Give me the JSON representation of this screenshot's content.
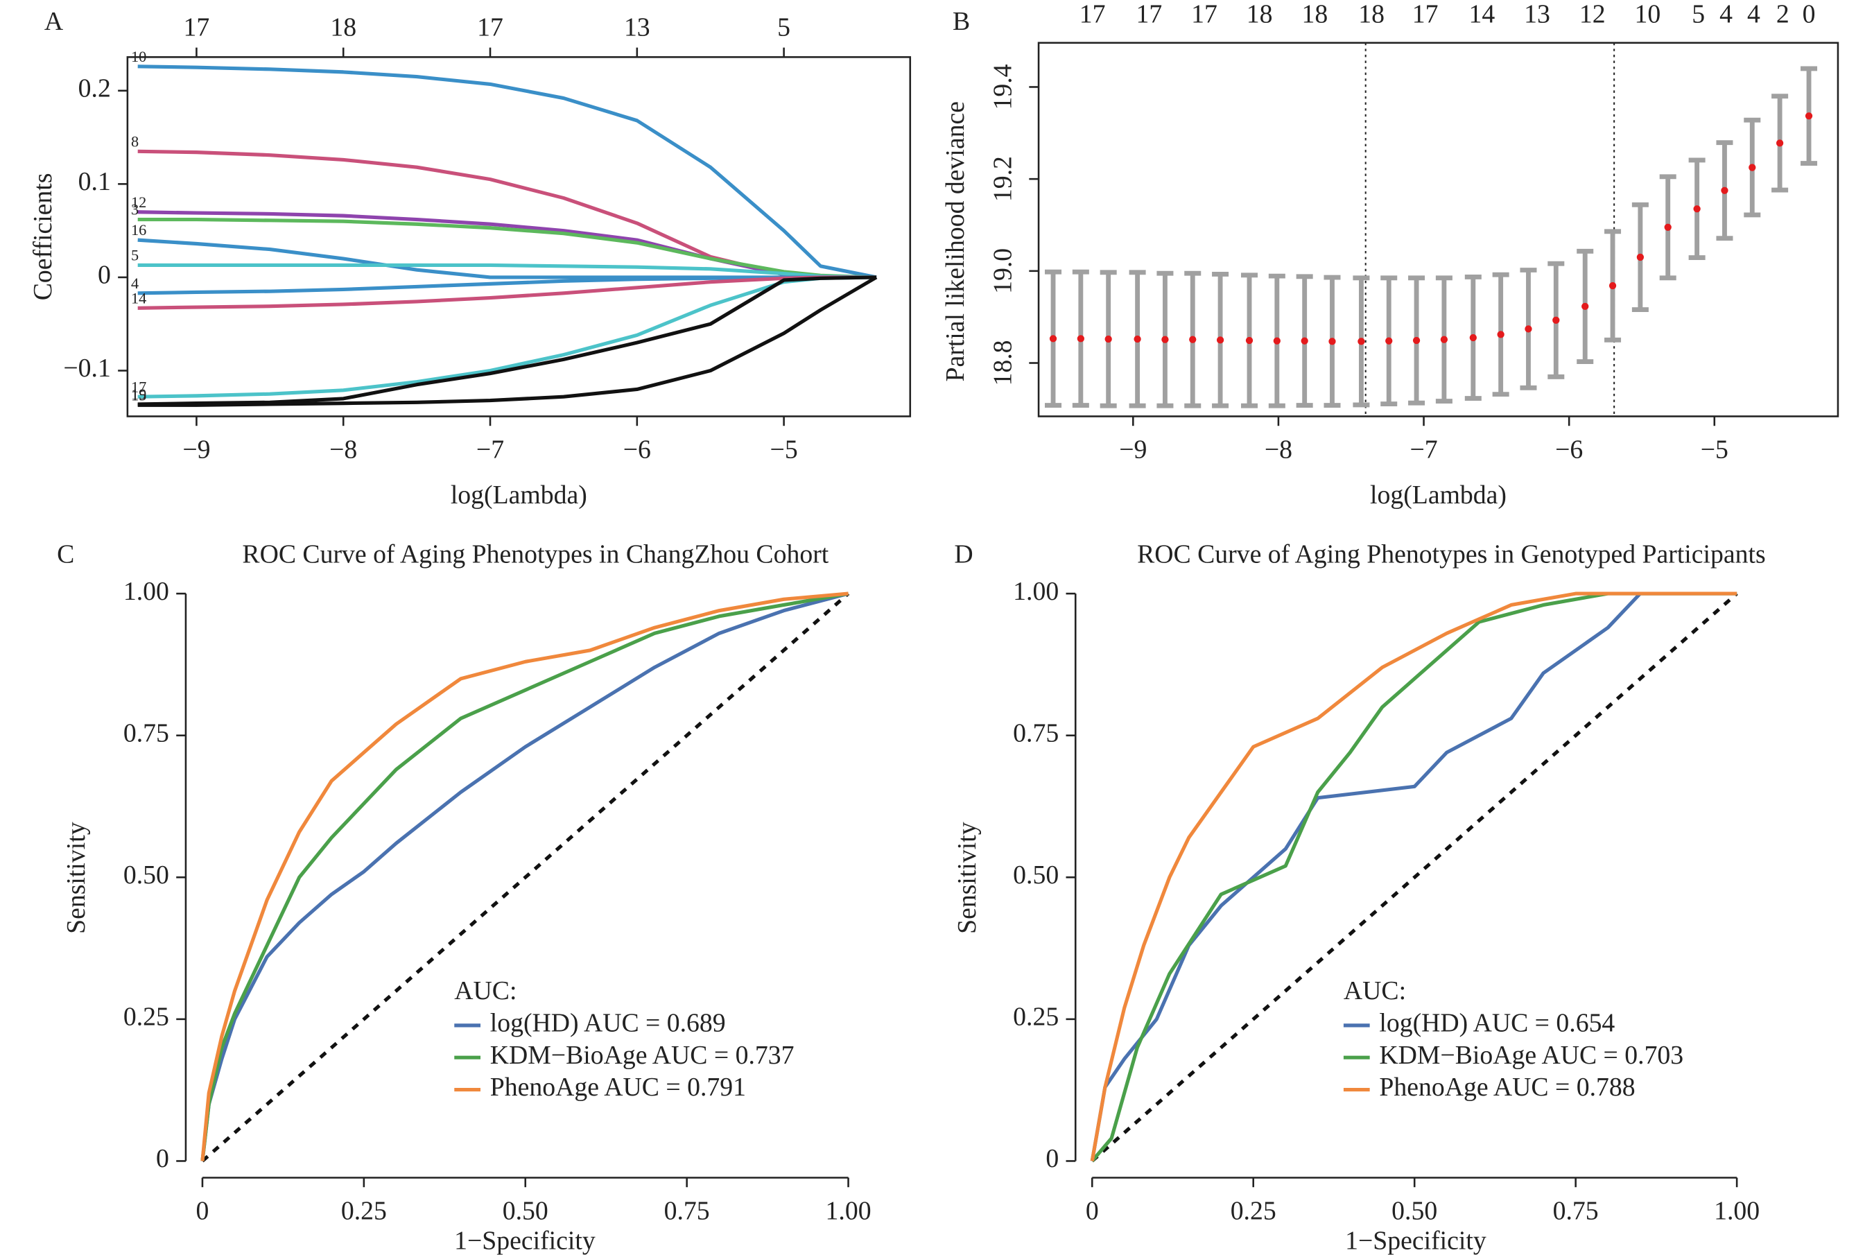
{
  "chart_data": [
    {
      "type": "line",
      "panel": "A",
      "xlabel": "log(Lambda)",
      "ylabel": "Coefficients",
      "direct_labels": true,
      "xlim": [
        -9.47,
        -4.14
      ],
      "ylim": [
        -0.149,
        0.236
      ],
      "xticks": [
        {
          "value": -9,
          "label": "−9"
        },
        {
          "value": -8,
          "label": "−8"
        },
        {
          "value": -7,
          "label": "−7"
        },
        {
          "value": -6,
          "label": "−6"
        },
        {
          "value": -5,
          "label": "−5"
        }
      ],
      "yticks": [
        {
          "value": -0.1,
          "label": "−0.1"
        },
        0,
        0.1,
        0.2
      ],
      "x2ticks": [
        {
          "value": -9,
          "label": "17"
        },
        {
          "value": -8,
          "label": "18"
        },
        {
          "value": -7,
          "label": "17"
        },
        {
          "value": -6,
          "label": "13"
        },
        {
          "value": -5,
          "label": "5"
        }
      ],
      "x": [
        -9.4,
        -9,
        -8.5,
        -8,
        -7.5,
        -7,
        -6.5,
        -6,
        -5.5,
        -5,
        -4.75,
        -4.37
      ],
      "series": [
        {
          "name": "10",
          "color": "#3a8fc8",
          "values": [
            0.226,
            0.225,
            0.223,
            0.22,
            0.215,
            0.207,
            0.192,
            0.168,
            0.118,
            0.05,
            0.012,
            0
          ]
        },
        {
          "name": "8",
          "color": "#c9507a",
          "values": [
            0.135,
            0.134,
            0.131,
            0.126,
            0.118,
            0.105,
            0.085,
            0.058,
            0.022,
            0.003,
            0,
            0
          ]
        },
        {
          "name": "12",
          "color": "#8e44ad",
          "values": [
            0.07,
            0.069,
            0.068,
            0.066,
            0.062,
            0.057,
            0.05,
            0.04,
            0.02,
            0.003,
            0,
            0
          ]
        },
        {
          "name": "3",
          "color": "#5cb85c",
          "values": [
            0.062,
            0.062,
            0.061,
            0.06,
            0.057,
            0.053,
            0.047,
            0.037,
            0.02,
            0.006,
            0.002,
            0
          ]
        },
        {
          "name": "16",
          "color": "#3a8fc8",
          "values": [
            0.04,
            0.036,
            0.03,
            0.02,
            0.008,
            0,
            0,
            0,
            0,
            0,
            0,
            0
          ]
        },
        {
          "name": "5",
          "color": "#4cc3c9",
          "values": [
            0.013,
            0.013,
            0.013,
            0.013,
            0.013,
            0.013,
            0.012,
            0.011,
            0.009,
            0.004,
            0.001,
            0
          ]
        },
        {
          "name": "4",
          "color": "#3a8fc8",
          "values": [
            -0.017,
            -0.016,
            -0.015,
            -0.013,
            -0.01,
            -0.007,
            -0.004,
            -0.002,
            -0.001,
            0,
            0,
            0
          ]
        },
        {
          "name": "14",
          "color": "#c9507a",
          "values": [
            -0.033,
            -0.032,
            -0.031,
            -0.029,
            -0.026,
            -0.022,
            -0.017,
            -0.011,
            -0.005,
            -0.001,
            0,
            0
          ]
        },
        {
          "name": "17",
          "color": "#4cc3c9",
          "values": [
            -0.128,
            -0.127,
            -0.125,
            -0.121,
            -0.112,
            -0.1,
            -0.083,
            -0.062,
            -0.03,
            -0.005,
            -0.001,
            0
          ]
        },
        {
          "name": "19",
          "color": "#111111",
          "values": [
            -0.136,
            -0.135,
            -0.134,
            -0.13,
            -0.115,
            -0.103,
            -0.088,
            -0.07,
            -0.05,
            -0.003,
            -0.001,
            0
          ]
        },
        {
          "name": "15",
          "color": "#111111",
          "values": [
            -0.137,
            -0.137,
            -0.136,
            -0.135,
            -0.134,
            -0.132,
            -0.128,
            -0.12,
            -0.1,
            -0.06,
            -0.035,
            0
          ]
        }
      ]
    },
    {
      "type": "errorbar",
      "panel": "B",
      "xlabel": "log(Lambda)",
      "ylabel": "Partial likelihood deviance",
      "xlim": [
        -9.65,
        -4.15
      ],
      "ylim": [
        18.684,
        19.496
      ],
      "xticks": [
        {
          "value": -9,
          "label": "−9"
        },
        {
          "value": -8,
          "label": "−8"
        },
        {
          "value": -7,
          "label": "−7"
        },
        {
          "value": -6,
          "label": "−6"
        },
        {
          "value": -5,
          "label": "−5"
        }
      ],
      "yticks": [
        18.8,
        {
          "value": 19,
          "label": "19.0"
        },
        19.2,
        19.4
      ],
      "x2ticks": [
        {
          "value": -9.28,
          "label": "17"
        },
        {
          "value": -8.89,
          "label": "17"
        },
        {
          "value": -8.51,
          "label": "17"
        },
        {
          "value": -8.13,
          "label": "18"
        },
        {
          "value": -7.75,
          "label": "18"
        },
        {
          "value": -7.36,
          "label": "18"
        },
        {
          "value": -6.99,
          "label": "17"
        },
        {
          "value": -6.6,
          "label": "14"
        },
        {
          "value": -6.22,
          "label": "13"
        },
        {
          "value": -5.84,
          "label": "12"
        },
        {
          "value": -5.46,
          "label": "10"
        },
        {
          "value": -5.11,
          "label": "5"
        },
        {
          "value": -4.92,
          "label": "4"
        },
        {
          "value": -4.73,
          "label": "4"
        },
        {
          "value": -4.53,
          "label": "2"
        },
        {
          "value": -4.35,
          "label": "0"
        }
      ],
      "vlines": [
        -7.4,
        -5.69
      ],
      "point_color": "#e41a1c",
      "error_color": "#a0a0a0",
      "x": [
        -9.55,
        -9.36,
        -9.17,
        -8.97,
        -8.78,
        -8.59,
        -8.4,
        -8.2,
        -8.01,
        -7.82,
        -7.63,
        -7.43,
        -7.24,
        -7.05,
        -6.86,
        -6.66,
        -6.47,
        -6.28,
        -6.09,
        -5.89,
        -5.7,
        -5.51,
        -5.32,
        -5.12,
        -4.93,
        -4.74,
        -4.55,
        -4.35
      ],
      "values": [
        18.853,
        18.853,
        18.852,
        18.852,
        18.851,
        18.851,
        18.85,
        18.849,
        18.848,
        18.848,
        18.847,
        18.847,
        18.848,
        18.849,
        18.851,
        18.855,
        18.862,
        18.874,
        18.893,
        18.923,
        18.968,
        19.03,
        19.095,
        19.135,
        19.175,
        19.225,
        19.278,
        19.337
      ],
      "errors": [
        0.145,
        0.145,
        0.145,
        0.145,
        0.144,
        0.144,
        0.143,
        0.142,
        0.141,
        0.14,
        0.139,
        0.138,
        0.137,
        0.136,
        0.134,
        0.132,
        0.13,
        0.128,
        0.123,
        0.12,
        0.118,
        0.114,
        0.11,
        0.106,
        0.104,
        0.103,
        0.102,
        0.103
      ]
    },
    {
      "type": "line",
      "panel": "C",
      "title": "ROC Curve of Aging Phenotypes in ChangZhou Cohort",
      "xlabel": "1−Specificity",
      "ylabel": "Sensitivity",
      "legend": "bottom right",
      "legend_title": "AUC:",
      "diagonal": true,
      "xlim": [
        0,
        1
      ],
      "ylim": [
        0,
        1
      ],
      "xticks": [
        0,
        0.25,
        {
          "value": 0.5,
          "label": "0.50"
        },
        0.75,
        {
          "value": 1,
          "label": "1.00"
        }
      ],
      "yticks": [
        {
          "value": 0,
          "label": "0"
        },
        0.25,
        {
          "value": 0.5,
          "label": "0.50"
        },
        0.75,
        {
          "value": 1,
          "label": "1.00"
        }
      ],
      "series": [
        {
          "name": "log(HD) AUC = 0.689",
          "color": "#4a72b0",
          "x": [
            0,
            0.01,
            0.03,
            0.05,
            0.1,
            0.15,
            0.2,
            0.25,
            0.3,
            0.4,
            0.5,
            0.6,
            0.7,
            0.8,
            0.9,
            1
          ],
          "values": [
            0,
            0.1,
            0.18,
            0.25,
            0.36,
            0.42,
            0.47,
            0.51,
            0.56,
            0.65,
            0.73,
            0.8,
            0.87,
            0.93,
            0.97,
            1
          ]
        },
        {
          "name": "KDM−BioAge AUC = 0.737",
          "color": "#4aa04a",
          "x": [
            0,
            0.01,
            0.03,
            0.05,
            0.1,
            0.15,
            0.2,
            0.25,
            0.3,
            0.4,
            0.5,
            0.6,
            0.7,
            0.8,
            0.9,
            1
          ],
          "values": [
            0,
            0.1,
            0.2,
            0.26,
            0.38,
            0.5,
            0.57,
            0.63,
            0.69,
            0.78,
            0.83,
            0.88,
            0.93,
            0.96,
            0.98,
            1
          ]
        },
        {
          "name": "PhenoAge AUC = 0.791",
          "color": "#f0883c",
          "x": [
            0,
            0.01,
            0.03,
            0.05,
            0.1,
            0.15,
            0.2,
            0.25,
            0.3,
            0.4,
            0.5,
            0.6,
            0.7,
            0.8,
            0.9,
            1
          ],
          "values": [
            0,
            0.12,
            0.22,
            0.3,
            0.46,
            0.58,
            0.67,
            0.72,
            0.77,
            0.85,
            0.88,
            0.9,
            0.94,
            0.97,
            0.99,
            1
          ]
        }
      ]
    },
    {
      "type": "line",
      "panel": "D",
      "title": "ROC Curve of Aging Phenotypes in Genotyped Participants",
      "xlabel": "1−Specificity",
      "ylabel": "Sensitivity",
      "legend": "bottom right",
      "legend_title": "AUC:",
      "diagonal": true,
      "xlim": [
        0,
        1
      ],
      "ylim": [
        0,
        1
      ],
      "xticks": [
        0,
        0.25,
        {
          "value": 0.5,
          "label": "0.50"
        },
        0.75,
        {
          "value": 1,
          "label": "1.00"
        }
      ],
      "yticks": [
        {
          "value": 0,
          "label": "0"
        },
        0.25,
        {
          "value": 0.5,
          "label": "0.50"
        },
        0.75,
        {
          "value": 1,
          "label": "1.00"
        }
      ],
      "series": [
        {
          "name": "log(HD) AUC = 0.654",
          "color": "#4a72b0",
          "x": [
            0,
            0.02,
            0.05,
            0.1,
            0.15,
            0.2,
            0.3,
            0.35,
            0.5,
            0.55,
            0.65,
            0.7,
            0.8,
            0.85,
            1
          ],
          "values": [
            0,
            0.13,
            0.18,
            0.25,
            0.38,
            0.45,
            0.55,
            0.64,
            0.66,
            0.72,
            0.78,
            0.86,
            0.94,
            1,
            1
          ]
        },
        {
          "name": "KDM−BioAge AUC = 0.703",
          "color": "#4aa04a",
          "x": [
            0,
            0.03,
            0.07,
            0.12,
            0.2,
            0.3,
            0.35,
            0.4,
            0.45,
            0.5,
            0.55,
            0.6,
            0.7,
            0.8,
            1
          ],
          "values": [
            0,
            0.04,
            0.2,
            0.33,
            0.47,
            0.52,
            0.65,
            0.72,
            0.8,
            0.85,
            0.9,
            0.95,
            0.98,
            1,
            1
          ]
        },
        {
          "name": "PhenoAge AUC = 0.788",
          "color": "#f0883c",
          "x": [
            0,
            0.02,
            0.05,
            0.08,
            0.12,
            0.15,
            0.2,
            0.25,
            0.35,
            0.45,
            0.55,
            0.65,
            0.75,
            1
          ],
          "values": [
            0,
            0.13,
            0.27,
            0.38,
            0.5,
            0.57,
            0.65,
            0.73,
            0.78,
            0.87,
            0.93,
            0.98,
            1,
            1
          ]
        }
      ]
    }
  ]
}
